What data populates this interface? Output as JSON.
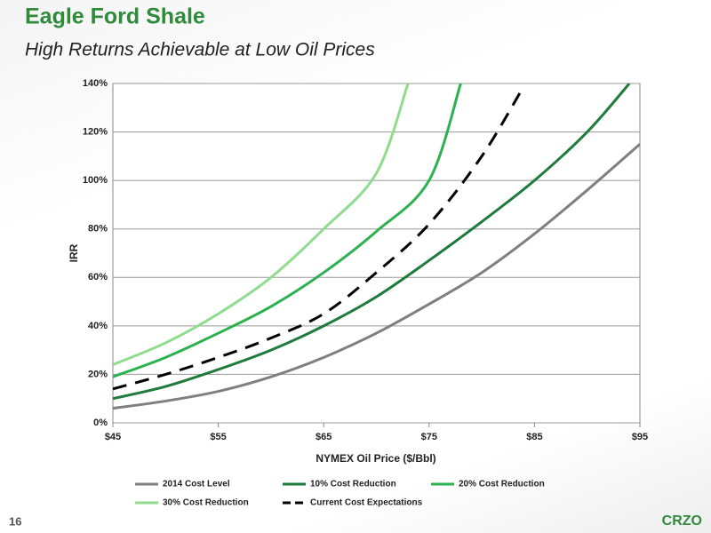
{
  "page_number": "16",
  "logo": "CRZO",
  "chart_data": {
    "type": "line",
    "title": "Eagle Ford Shale",
    "subtitle": "High Returns Achievable at Low Oil Prices",
    "x_label": "NYMEX Oil Price ($/Bbl)",
    "y_label": "IRR",
    "xlim": [
      45,
      95
    ],
    "ylim": [
      0,
      140
    ],
    "xticks": [
      {
        "value": 45,
        "label": "$45"
      },
      {
        "value": 55,
        "label": "$55"
      },
      {
        "value": 65,
        "label": "$65"
      },
      {
        "value": 75,
        "label": "$75"
      },
      {
        "value": 85,
        "label": "$85"
      },
      {
        "value": 95,
        "label": "$95"
      }
    ],
    "yticks": [
      {
        "value": 0,
        "label": "0%"
      },
      {
        "value": 20,
        "label": "20%"
      },
      {
        "value": 40,
        "label": "40%"
      },
      {
        "value": 60,
        "label": "60%"
      },
      {
        "value": 80,
        "label": "80%"
      },
      {
        "value": 100,
        "label": "100%"
      },
      {
        "value": 120,
        "label": "120%"
      },
      {
        "value": 140,
        "label": "140%"
      }
    ],
    "grid": true,
    "series": [
      {
        "name": "2014 Cost Level",
        "color": "#7f7f7f",
        "x": [
          45,
          50,
          55,
          60,
          65,
          70,
          75,
          80,
          85,
          90,
          95
        ],
        "values": [
          6,
          9,
          13,
          19,
          27,
          37,
          49,
          62,
          78,
          96,
          115
        ]
      },
      {
        "name": "10% Cost Reduction",
        "color": "#1e7b3c",
        "x": [
          45,
          50,
          55,
          60,
          65,
          70,
          75,
          80,
          85,
          90,
          94
        ],
        "values": [
          10,
          15,
          22,
          30,
          40,
          52,
          67,
          83,
          100,
          120,
          140
        ]
      },
      {
        "name": "20% Cost Reduction",
        "color": "#2db150",
        "x": [
          45,
          50,
          55,
          60,
          65,
          70,
          75,
          78
        ],
        "values": [
          19,
          27,
          37,
          48,
          62,
          79,
          100,
          140
        ]
      },
      {
        "name": "30% Cost Reduction",
        "color": "#8fdc8f",
        "x": [
          45,
          50,
          55,
          60,
          65,
          70,
          73
        ],
        "values": [
          24,
          33,
          45,
          60,
          80,
          103,
          140
        ]
      },
      {
        "name": "Current Cost Expectations",
        "color": "#000000",
        "dashed": true,
        "x": [
          45,
          50,
          55,
          60,
          65,
          70,
          75,
          80,
          84
        ],
        "values": [
          14,
          20,
          27,
          35,
          45,
          62,
          82,
          110,
          139
        ]
      }
    ]
  }
}
